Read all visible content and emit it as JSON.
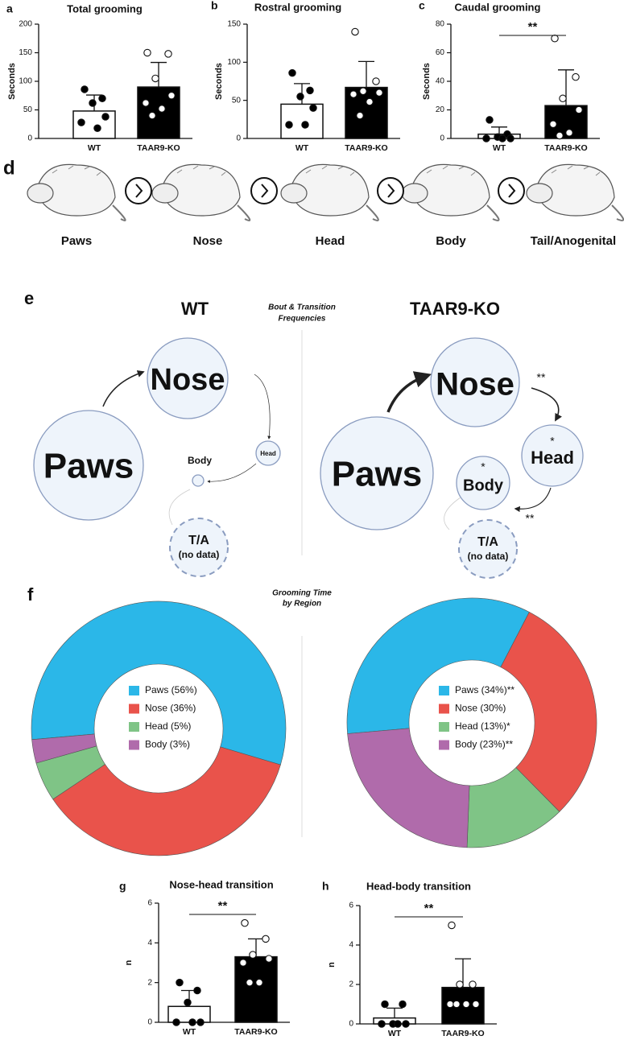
{
  "chart_data": [
    {
      "type": "bar",
      "panel": "a",
      "title": "Total grooming",
      "ylabel": "Seconds",
      "categories": [
        "WT",
        "TAAR9-KO"
      ],
      "values": [
        48,
        90
      ],
      "errors": [
        28,
        43
      ],
      "points": [
        [
          86,
          70,
          62,
          38,
          28,
          18
        ],
        [
          150,
          148,
          105,
          75,
          62,
          52,
          40
        ]
      ],
      "colors": [
        "#ffffff",
        "#000000"
      ],
      "point_colors": [
        "#000000",
        "#ffffff"
      ],
      "ylim": [
        0,
        200
      ],
      "yticks": [
        0,
        50,
        100,
        150,
        200
      ]
    },
    {
      "type": "bar",
      "panel": "b",
      "title": "Rostral grooming",
      "ylabel": "Seconds",
      "categories": [
        "WT",
        "TAAR9-KO"
      ],
      "values": [
        45,
        67
      ],
      "errors": [
        27,
        34
      ],
      "points": [
        [
          86,
          63,
          55,
          40,
          18,
          18
        ],
        [
          140,
          75,
          62,
          60,
          58,
          48,
          30
        ]
      ],
      "colors": [
        "#ffffff",
        "#000000"
      ],
      "point_colors": [
        "#000000",
        "#ffffff"
      ],
      "ylim": [
        0,
        150
      ],
      "yticks": [
        0,
        50,
        100,
        150
      ]
    },
    {
      "type": "bar",
      "panel": "c",
      "title": "Caudal grooming",
      "ylabel": "Seconds",
      "categories": [
        "WT",
        "TAAR9-KO"
      ],
      "values": [
        3,
        23
      ],
      "errors": [
        5,
        25
      ],
      "points": [
        [
          13,
          3,
          1,
          0,
          0,
          0
        ],
        [
          70,
          43,
          28,
          20,
          10,
          4,
          2
        ]
      ],
      "colors": [
        "#ffffff",
        "#000000"
      ],
      "point_colors": [
        "#000000",
        "#ffffff"
      ],
      "ylim": [
        0,
        80
      ],
      "yticks": [
        0,
        20,
        40,
        60,
        80
      ],
      "annotation": "**"
    },
    {
      "type": "donut",
      "values": [
        56,
        36,
        5,
        3
      ],
      "value_labels": [
        "Paws (56%)",
        "Nose (36%)",
        "Head (5%)",
        "Body (3%)"
      ],
      "colors": [
        "#2bb7e8",
        "#e9534b",
        "#7fc486",
        "#b06bab"
      ]
    },
    {
      "type": "donut",
      "values": [
        34,
        30,
        13,
        23
      ],
      "value_labels": [
        "Paws (34%)**",
        "Nose (30%)",
        "Head (13%)*",
        "Body (23%)**"
      ],
      "colors": [
        "#2bb7e8",
        "#e9534b",
        "#7fc486",
        "#b06bab"
      ]
    },
    {
      "type": "bar",
      "panel": "g",
      "title": "Nose-head transition",
      "ylabel": "n",
      "categories": [
        "WT",
        "TAAR9-KO"
      ],
      "values": [
        0.8,
        3.3
      ],
      "errors": [
        0.8,
        0.9
      ],
      "points": [
        [
          2,
          1.6,
          1,
          0,
          0,
          0
        ],
        [
          5,
          4.2,
          3.4,
          3.2,
          3,
          2,
          2
        ]
      ],
      "colors": [
        "#ffffff",
        "#000000"
      ],
      "point_colors": [
        "#000000",
        "#ffffff"
      ],
      "ylim": [
        0,
        6
      ],
      "yticks": [
        0,
        2,
        4,
        6
      ],
      "annotation": "**"
    },
    {
      "type": "bar",
      "panel": "h",
      "title": "Head-body transition",
      "ylabel": "n",
      "categories": [
        "WT",
        "TAAR9-KO"
      ],
      "values": [
        0.3,
        1.85
      ],
      "errors": [
        0.5,
        1.45
      ],
      "points": [
        [
          1,
          1,
          0,
          0,
          0,
          0
        ],
        [
          5,
          2,
          2,
          1,
          1,
          1,
          1
        ]
      ],
      "colors": [
        "#ffffff",
        "#000000"
      ],
      "point_colors": [
        "#000000",
        "#ffffff"
      ],
      "ylim": [
        0,
        6
      ],
      "yticks": [
        0,
        2,
        4,
        6
      ],
      "annotation": "**"
    }
  ],
  "panel_d": {
    "label": "d",
    "steps": [
      "Paws",
      "Nose",
      "Head",
      "Body",
      "Tail/Anogenital"
    ]
  },
  "panel_e": {
    "label": "e",
    "title": [
      "Bout & Transition",
      "Frequencies"
    ],
    "groups": [
      {
        "name": "WT",
        "nodes": {
          "nose": "Nose",
          "paws": "Paws",
          "head": "Head",
          "body": "Body",
          "ta": "T/A",
          "ta_note": "(no data)"
        }
      },
      {
        "name": "TAAR9-KO",
        "nodes": {
          "nose": "Nose",
          "paws": "Paws",
          "head": "Head",
          "body": "Body",
          "ta": "T/A",
          "ta_note": "(no data)"
        },
        "marks": {
          "nose_head": "**",
          "head": "*",
          "body": "*",
          "head_body": "**"
        }
      }
    ]
  },
  "panel_f": {
    "label": "f",
    "title": [
      "Grooming Time",
      "by Region"
    ]
  }
}
